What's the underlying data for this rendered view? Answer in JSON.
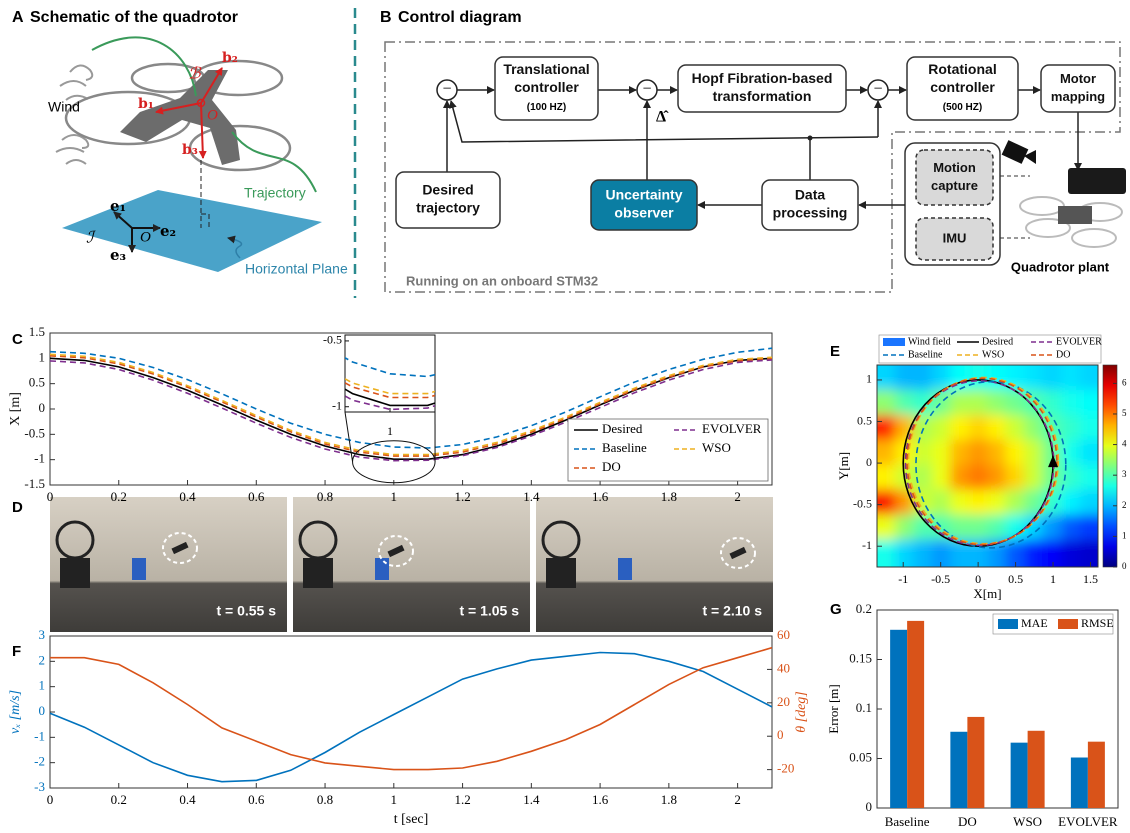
{
  "panel_a": {
    "letter": "A",
    "title": "Schematic of the quadrotor",
    "labels": {
      "wind": "Wind",
      "b1": "b₁",
      "b2": "b₂",
      "b3": "b₃",
      "body_frame": "ℬ",
      "body_origin": "O",
      "trajectory": "Trajectory",
      "e1": "e₁",
      "e2": "e₂",
      "e3": "e₃",
      "inertial_frame": "ℐ",
      "inertial_origin": "O",
      "plane": "Horizontal Plane"
    }
  },
  "panel_b": {
    "letter": "B",
    "title": "Control diagram",
    "sum_sign": "−",
    "delta_hat": "Δ̂",
    "nodes": [
      {
        "label": [
          "Translational",
          "controller"
        ],
        "note": "(100 HZ)"
      },
      {
        "label": [
          "Hopf Fibration-based",
          "transformation"
        ]
      },
      {
        "label": [
          "Rotational",
          "controller"
        ],
        "note": "(500 HZ)"
      },
      {
        "label": [
          "Motor",
          "mapping"
        ]
      },
      {
        "label": [
          "Desired",
          "trajectory"
        ]
      },
      {
        "label": [
          "Uncertainty",
          "observer"
        ]
      },
      {
        "label": [
          "Data",
          "processing"
        ]
      },
      {
        "label": [
          "Motion",
          "capture"
        ]
      },
      {
        "label": [
          "IMU"
        ]
      }
    ],
    "boundary": "Running on an onboard STM32",
    "plant": "Quadrotor plant"
  },
  "panel_d": {
    "letter": "D",
    "frames": [
      "t = 0.55 s",
      "t = 1.05 s",
      "t = 2.10 s"
    ]
  },
  "chart_data": [
    {
      "type": "line",
      "letter": "C",
      "ylabel": "X [m]",
      "x": [
        0,
        0.1,
        0.2,
        0.3,
        0.4,
        0.5,
        0.6,
        0.7,
        0.8,
        0.9,
        1,
        1.1,
        1.2,
        1.3,
        1.4,
        1.5,
        1.6,
        1.7,
        1.8,
        1.9,
        2,
        2.1
      ],
      "xlim": [
        0,
        2.1
      ],
      "xticks": [
        0,
        0.2,
        0.4,
        0.6,
        0.8,
        1,
        1.2,
        1.4,
        1.6,
        1.8,
        2
      ],
      "ylim": [
        -1.5,
        1.5
      ],
      "yticks": [
        -1.5,
        -1,
        -0.5,
        0,
        0.5,
        1,
        1.5
      ],
      "legend": "lower right",
      "series": [
        {
          "name": "Desired",
          "color": "#000000",
          "dash": false,
          "values": [
            1.0,
            0.96,
            0.83,
            0.62,
            0.37,
            0.08,
            -0.22,
            -0.5,
            -0.73,
            -0.9,
            -0.99,
            -0.99,
            -0.9,
            -0.73,
            -0.5,
            -0.22,
            0.08,
            0.37,
            0.62,
            0.83,
            0.96,
            1.0
          ]
        },
        {
          "name": "Baseline",
          "color": "#0072BD",
          "dash": true,
          "values": [
            1.13,
            1.1,
            1.0,
            0.82,
            0.58,
            0.3,
            0.0,
            -0.28,
            -0.5,
            -0.66,
            -0.75,
            -0.77,
            -0.7,
            -0.55,
            -0.33,
            -0.06,
            0.24,
            0.53,
            0.78,
            0.98,
            1.12,
            1.2
          ]
        },
        {
          "name": "DO",
          "color": "#D95319",
          "dash": true,
          "values": [
            1.05,
            1.01,
            0.89,
            0.69,
            0.43,
            0.14,
            -0.16,
            -0.45,
            -0.69,
            -0.85,
            -0.93,
            -0.93,
            -0.85,
            -0.69,
            -0.46,
            -0.19,
            0.1,
            0.38,
            0.63,
            0.83,
            0.95,
            0.99
          ]
        },
        {
          "name": "EVOLVER",
          "color": "#7E2F8E",
          "dash": true,
          "values": [
            0.95,
            0.91,
            0.78,
            0.57,
            0.31,
            0.02,
            -0.28,
            -0.56,
            -0.79,
            -0.95,
            -1.02,
            -1.01,
            -0.92,
            -0.76,
            -0.53,
            -0.26,
            0.03,
            0.32,
            0.57,
            0.78,
            0.92,
            0.97
          ]
        },
        {
          "name": "WSO",
          "color": "#EDB120",
          "dash": true,
          "values": [
            1.08,
            1.04,
            0.92,
            0.72,
            0.46,
            0.17,
            -0.13,
            -0.42,
            -0.66,
            -0.82,
            -0.9,
            -0.9,
            -0.82,
            -0.66,
            -0.43,
            -0.16,
            0.13,
            0.41,
            0.66,
            0.86,
            0.98,
            1.02
          ]
        }
      ],
      "inset": {
        "xlim": [
          0.88,
          1.12
        ],
        "ylim": [
          -1.04,
          -0.455
        ],
        "xticks": [
          1
        ],
        "yticks": [
          -1,
          -0.5
        ]
      }
    },
    {
      "type": "heatmap",
      "letter": "E",
      "xlabel": "X[m]",
      "ylabel": "Y[m]",
      "xlim": [
        -1.35,
        1.6
      ],
      "xticks": [
        -1,
        -0.5,
        0,
        0.5,
        1,
        1.5
      ],
      "ylim": [
        -1.25,
        1.18
      ],
      "yticks": [
        -1,
        -0.5,
        0,
        0.5,
        1
      ],
      "clim": [
        0,
        6.6
      ],
      "cticks": [
        0,
        1,
        2,
        3,
        4,
        5,
        6
      ],
      "field": {
        "name": "Wind field",
        "color": "#1a75ff",
        "x": [
          -1.23,
          -0.98,
          -0.74,
          -0.49,
          -0.25,
          0,
          0.25,
          0.49,
          0.74,
          0.98,
          1.23,
          1.48
        ],
        "y": [
          1.03,
          0.73,
          0.43,
          0.13,
          -0.17,
          -0.47,
          -0.77,
          -1.07
        ],
        "z": [
          [
            2.2,
            2.0,
            2.0,
            2.2,
            2.5,
            2.6,
            2.5,
            2.4,
            2.3,
            2.2,
            2.3,
            2.2
          ],
          [
            3.4,
            3.0,
            2.8,
            3.2,
            3.6,
            3.6,
            3.4,
            3.2,
            3.0,
            2.8,
            2.6,
            2.5
          ],
          [
            5.6,
            4.6,
            3.6,
            3.8,
            4.2,
            4.4,
            4.2,
            3.8,
            3.4,
            3.0,
            2.8,
            2.6
          ],
          [
            4.6,
            4.2,
            3.8,
            4.0,
            4.6,
            4.8,
            4.6,
            4.2,
            3.8,
            3.2,
            2.6,
            2.3
          ],
          [
            4.2,
            3.8,
            3.6,
            4.0,
            4.8,
            5.0,
            4.8,
            4.4,
            3.8,
            3.2,
            2.8,
            2.6
          ],
          [
            5.8,
            4.8,
            3.8,
            3.6,
            4.0,
            4.2,
            4.0,
            3.6,
            3.2,
            2.8,
            2.4,
            2.2
          ],
          [
            4.0,
            3.4,
            3.0,
            3.0,
            3.2,
            3.2,
            3.0,
            2.6,
            2.2,
            1.8,
            1.4,
            1.2
          ],
          [
            2.6,
            2.2,
            2.0,
            1.8,
            2.0,
            2.0,
            1.8,
            1.4,
            1.0,
            0.8,
            0.6,
            0.5
          ]
        ]
      },
      "series": [
        {
          "name": "Desired",
          "color": "#000000",
          "dash": false,
          "center": [
            0,
            0
          ],
          "radius": 1
        },
        {
          "name": "EVOLVER",
          "color": "#7E2F8E",
          "dash": true,
          "center": [
            0.02,
            0
          ],
          "radius": 0.99
        },
        {
          "name": "Baseline",
          "color": "#0072BD",
          "dash": true,
          "center": [
            0.17,
            -0.02
          ],
          "radius": 1
        },
        {
          "name": "WSO",
          "color": "#EDB120",
          "dash": true,
          "center": [
            0.07,
            0.03
          ],
          "radius": 1
        },
        {
          "name": "DO",
          "color": "#D95319",
          "dash": true,
          "center": [
            0.05,
            0.02
          ],
          "radius": 1
        }
      ]
    },
    {
      "type": "line",
      "letter": "F",
      "xlabel": "t [sec]",
      "ylabel": "vₓ [m/s]",
      "y2label": "θ [deg]",
      "x": [
        0,
        0.1,
        0.2,
        0.3,
        0.4,
        0.5,
        0.6,
        0.7,
        0.8,
        0.9,
        1,
        1.1,
        1.2,
        1.3,
        1.4,
        1.5,
        1.6,
        1.7,
        1.8,
        1.9,
        2,
        2.1
      ],
      "xlim": [
        0,
        2.1
      ],
      "xticks": [
        0,
        0.2,
        0.4,
        0.6,
        0.8,
        1,
        1.2,
        1.4,
        1.6,
        1.8,
        2
      ],
      "ylim": [
        -3,
        3
      ],
      "yticks": [
        -3,
        -2,
        -1,
        0,
        1,
        2,
        3
      ],
      "y2lim": [
        -31,
        60
      ],
      "y2ticks": [
        -20,
        0,
        20,
        40,
        60
      ],
      "series": [
        {
          "color": "#0072BD",
          "dash": false,
          "values": [
            -0.05,
            -0.6,
            -1.3,
            -2.0,
            -2.5,
            -2.75,
            -2.7,
            -2.3,
            -1.6,
            -0.8,
            -0.1,
            0.6,
            1.3,
            1.7,
            2.05,
            2.2,
            2.35,
            2.3,
            2.0,
            1.6,
            0.9,
            0.2
          ]
        },
        {
          "color": "#D95319",
          "dash": false,
          "axis": "y2",
          "values": [
            47,
            47,
            43,
            32,
            19,
            5,
            -3,
            -11,
            -16,
            -18,
            -20,
            -20,
            -19,
            -15,
            -9,
            -2,
            7,
            19,
            31,
            41,
            47,
            53
          ]
        }
      ]
    },
    {
      "type": "bar",
      "letter": "G",
      "ylabel": "Error [m]",
      "categories": [
        "Baseline",
        "DO",
        "WSO",
        "EVOLVER"
      ],
      "ylim": [
        0,
        0.2
      ],
      "yticks": [
        0,
        0.05,
        0.1,
        0.15,
        0.2
      ],
      "legend": "upper right",
      "series": [
        {
          "name": "MAE",
          "color": "#0072BD",
          "values": [
            0.18,
            0.077,
            0.066,
            0.051
          ]
        },
        {
          "name": "RMSE",
          "color": "#D95319",
          "values": [
            0.189,
            0.092,
            0.078,
            0.067
          ]
        }
      ]
    }
  ]
}
